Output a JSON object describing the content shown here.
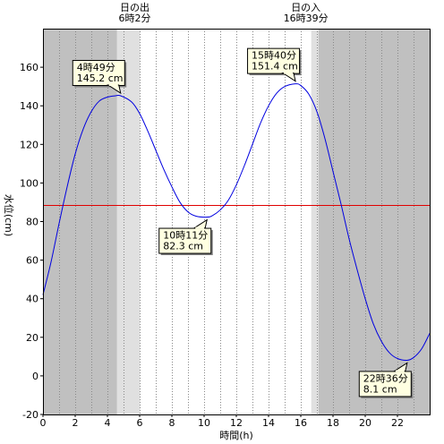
{
  "chart_data": {
    "type": "line",
    "xlabel": "時間(h)",
    "ylabel": "水位(cm)",
    "xlim": [
      0,
      24
    ],
    "ylim": [
      -20,
      180
    ],
    "x_ticks": [
      0,
      2,
      4,
      6,
      8,
      10,
      12,
      14,
      16,
      18,
      20,
      22
    ],
    "y_ticks": [
      -20,
      0,
      20,
      40,
      60,
      80,
      100,
      120,
      140,
      160
    ],
    "grid": "vertical dotted every 1h",
    "reference_line": {
      "y": 88.5,
      "color": "#e00000"
    },
    "series": [
      {
        "color": "#0000e0",
        "x": [
          0,
          0.5,
          1,
          1.5,
          2,
          2.5,
          3,
          3.5,
          4,
          4.5,
          4.82,
          5.5,
          6,
          6.5,
          7,
          7.5,
          8,
          8.5,
          9,
          9.5,
          10.18,
          10.5,
          11,
          11.5,
          12,
          12.5,
          13,
          13.5,
          14,
          14.5,
          15,
          15.67,
          16,
          16.5,
          17,
          17.5,
          18,
          18.5,
          19,
          19.5,
          20,
          20.5,
          21,
          21.5,
          22,
          22.6,
          23,
          23.5,
          24
        ],
        "y": [
          42,
          59,
          79,
          98,
          115,
          128,
          137,
          142.5,
          144.5,
          145.2,
          145.2,
          142,
          136,
          127,
          117,
          107,
          98,
          90,
          85,
          82.8,
          82.3,
          83,
          86,
          91,
          99,
          109,
          120,
          131,
          140,
          146.5,
          150,
          151.4,
          150.5,
          146,
          137,
          123,
          106,
          89,
          71,
          55,
          40,
          27,
          18,
          12,
          9,
          8.1,
          9.5,
          14,
          22
        ]
      }
    ],
    "sun_bands": {
      "night_color": "#c0c0c0",
      "twilight_color": "#e0e0e0",
      "day_color": "#ffffff",
      "twilight_start_am": 4.6,
      "sunrise": 6.03,
      "sunset": 16.65,
      "twilight_end_pm": 17.1
    },
    "top_labels": [
      {
        "id": "sunrise",
        "line1": "日の出",
        "line2": "6時2分"
      },
      {
        "id": "sunset",
        "line1": "日の入",
        "line2": "16時39分"
      }
    ],
    "annotations": [
      {
        "id": "high1",
        "time": "4時49分",
        "level": "145.2 cm",
        "x": 4.82,
        "y": 145.2,
        "placement": "above-left"
      },
      {
        "id": "low1",
        "time": "10時11分",
        "level": "82.3 cm",
        "x": 10.18,
        "y": 82.3,
        "placement": "below-left"
      },
      {
        "id": "high2",
        "time": "15時40分",
        "level": "151.4 cm",
        "x": 15.67,
        "y": 151.4,
        "placement": "above-left"
      },
      {
        "id": "low2",
        "time": "22時36分",
        "level": "8.1 cm",
        "x": 22.6,
        "y": 8.1,
        "placement": "below-left"
      }
    ]
  }
}
